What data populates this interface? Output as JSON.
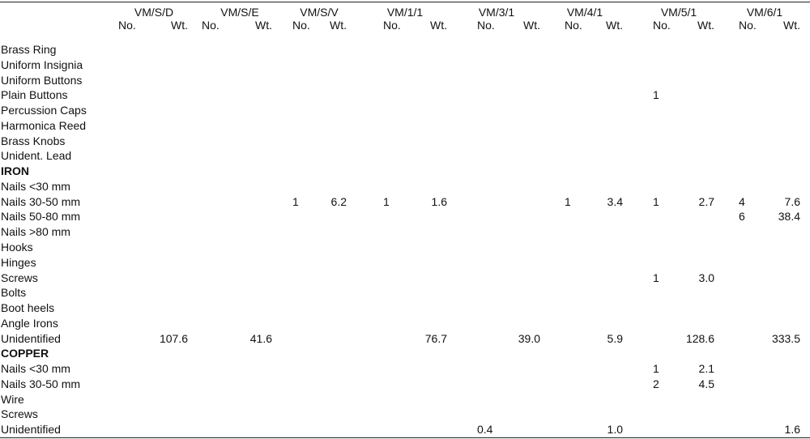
{
  "columns": [
    {
      "group": "VM/S/D",
      "no_label": "No.",
      "wt_label": "Wt."
    },
    {
      "group": "VM/S/E",
      "no_label": "No.",
      "wt_label": "Wt."
    },
    {
      "group": "VM/S/V",
      "no_label": "No.",
      "wt_label": "Wt."
    },
    {
      "group": "VM/1/1",
      "no_label": "No.",
      "wt_label": "Wt."
    },
    {
      "group": "VM/3/1",
      "no_label": "No.",
      "wt_label": "Wt."
    },
    {
      "group": "VM/4/1",
      "no_label": "No.",
      "wt_label": "Wt."
    },
    {
      "group": "VM/5/1",
      "no_label": "No.",
      "wt_label": "Wt."
    },
    {
      "group": "VM/6/1",
      "no_label": "No.",
      "wt_label": "Wt."
    }
  ],
  "rows": [
    {
      "label": "Brass Ring",
      "bold": false,
      "cells": []
    },
    {
      "label": "Uniform Insignia",
      "bold": false,
      "cells": []
    },
    {
      "label": "Uniform Buttons",
      "bold": false,
      "cells": []
    },
    {
      "label": "Plain Buttons",
      "bold": false,
      "cells": [
        {
          "col": 6,
          "field": "no",
          "value": "1"
        }
      ]
    },
    {
      "label": "Percussion Caps",
      "bold": false,
      "cells": []
    },
    {
      "label": "Harmonica Reed",
      "bold": false,
      "cells": []
    },
    {
      "label": "Brass Knobs",
      "bold": false,
      "cells": []
    },
    {
      "label": "Unident. Lead",
      "bold": false,
      "cells": []
    },
    {
      "label": "IRON",
      "bold": true,
      "cells": []
    },
    {
      "label": "Nails <30 mm",
      "bold": false,
      "cells": []
    },
    {
      "label": "Nails 30-50 mm",
      "bold": false,
      "cells": [
        {
          "col": 2,
          "field": "no",
          "value": "1"
        },
        {
          "col": 2,
          "field": "wt",
          "value": "6.2"
        },
        {
          "col": 3,
          "field": "no",
          "value": "1"
        },
        {
          "col": 3,
          "field": "wt",
          "value": "1.6"
        },
        {
          "col": 5,
          "field": "no",
          "value": "1"
        },
        {
          "col": 5,
          "field": "wt",
          "value": "3.4"
        },
        {
          "col": 6,
          "field": "no",
          "value": "1"
        },
        {
          "col": 6,
          "field": "wt",
          "value": "2.7"
        },
        {
          "col": 7,
          "field": "no",
          "value": "4"
        },
        {
          "col": 7,
          "field": "wt",
          "value": "7.6"
        }
      ]
    },
    {
      "label": "Nails 50-80 mm",
      "bold": false,
      "cells": [
        {
          "col": 7,
          "field": "no",
          "value": "6"
        },
        {
          "col": 7,
          "field": "wt",
          "value": "38.4"
        }
      ]
    },
    {
      "label": "Nails >80 mm",
      "bold": false,
      "cells": []
    },
    {
      "label": "Hooks",
      "bold": false,
      "cells": []
    },
    {
      "label": "Hinges",
      "bold": false,
      "cells": []
    },
    {
      "label": "Screws",
      "bold": false,
      "cells": [
        {
          "col": 6,
          "field": "no",
          "value": "1"
        },
        {
          "col": 6,
          "field": "wt",
          "value": "3.0"
        }
      ]
    },
    {
      "label": "Bolts",
      "bold": false,
      "cells": []
    },
    {
      "label": "Boot heels",
      "bold": false,
      "cells": []
    },
    {
      "label": "Angle Irons",
      "bold": false,
      "cells": []
    },
    {
      "label": "Unidentified",
      "bold": false,
      "cells": [
        {
          "col": 0,
          "field": "wt",
          "value": "107.6"
        },
        {
          "col": 1,
          "field": "wt",
          "value": "41.6"
        },
        {
          "col": 3,
          "field": "wt",
          "value": "76.7"
        },
        {
          "col": 4,
          "field": "wt",
          "value": "39.0"
        },
        {
          "col": 5,
          "field": "wt",
          "value": "5.9"
        },
        {
          "col": 6,
          "field": "wt",
          "value": "128.6"
        },
        {
          "col": 7,
          "field": "wt",
          "value": "333.5"
        }
      ]
    },
    {
      "label": "COPPER",
      "bold": true,
      "cells": []
    },
    {
      "label": "Nails <30 mm",
      "bold": false,
      "cells": [
        {
          "col": 6,
          "field": "no",
          "value": "1"
        },
        {
          "col": 6,
          "field": "wt",
          "value": "2.1"
        }
      ]
    },
    {
      "label": "Nails 30-50 mm",
      "bold": false,
      "cells": [
        {
          "col": 6,
          "field": "no",
          "value": "2"
        },
        {
          "col": 6,
          "field": "wt",
          "value": "4.5"
        }
      ]
    },
    {
      "label": "Wire",
      "bold": false,
      "cells": []
    },
    {
      "label": "Screws",
      "bold": false,
      "cells": []
    },
    {
      "label": "Unidentified",
      "bold": false,
      "cells": [
        {
          "col": 4,
          "field": "no",
          "value": "0.4"
        },
        {
          "col": 5,
          "field": "wt",
          "value": "1.0"
        },
        {
          "col": 7,
          "field": "wt",
          "value": "1.6"
        }
      ]
    }
  ]
}
